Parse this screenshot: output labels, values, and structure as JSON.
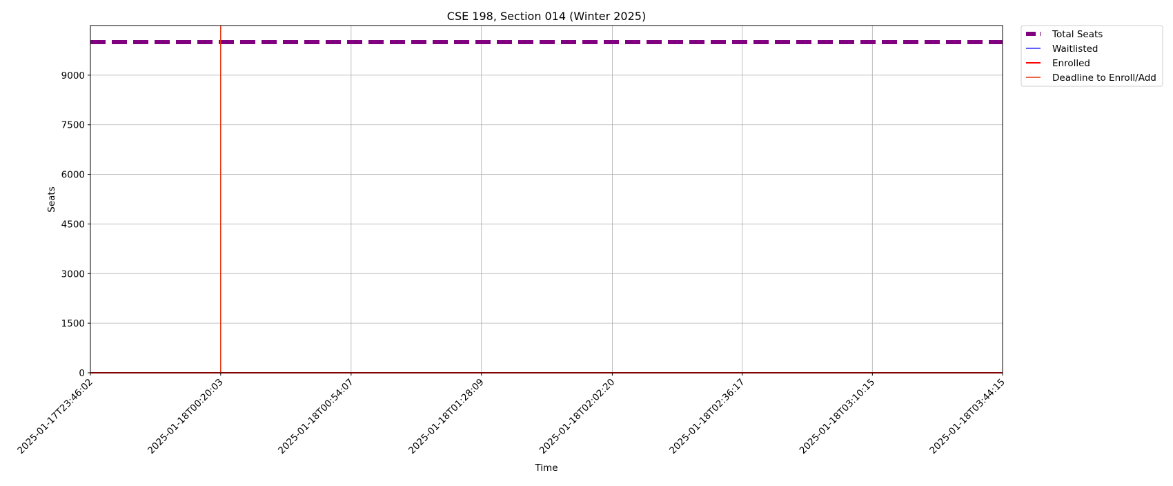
{
  "chart_data": {
    "type": "line",
    "title": "CSE 198, Section 014 (Winter 2025)",
    "xlabel": "Time",
    "ylabel": "Seats",
    "x_ticks": [
      "2025-01-17T23:46:02",
      "2025-01-18T00:20:03",
      "2025-01-18T00:54:07",
      "2025-01-18T01:28:09",
      "2025-01-18T02:02:20",
      "2025-01-18T02:36:17",
      "2025-01-18T03:10:15",
      "2025-01-18T03:44:15"
    ],
    "x_range": [
      "2025-01-17T23:46:02",
      "2025-01-18T03:44:15"
    ],
    "y_ticks": [
      0,
      1500,
      3000,
      4500,
      6000,
      7500,
      9000
    ],
    "ylim": [
      0,
      10500
    ],
    "grid": true,
    "legend_position": "outside-top-right",
    "series": [
      {
        "name": "Total Seats",
        "style": "dashed",
        "color": "#800080",
        "x": [
          "2025-01-17T23:46:02",
          "2025-01-18T03:44:15"
        ],
        "y": [
          9999,
          9999
        ]
      },
      {
        "name": "Waitlisted",
        "style": "solid",
        "color": "#0000ff",
        "x": [
          "2025-01-17T23:46:02",
          "2025-01-18T03:44:15"
        ],
        "y": [
          0,
          0
        ]
      },
      {
        "name": "Enrolled",
        "style": "solid",
        "color": "#ff0000",
        "x": [
          "2025-01-17T23:46:02",
          "2025-01-18T03:44:15"
        ],
        "y": [
          0,
          0
        ]
      }
    ],
    "vlines": [
      {
        "name": "Deadline to Enroll/Add",
        "color": "#e8300a",
        "x": "2025-01-18T00:20:03"
      }
    ]
  }
}
